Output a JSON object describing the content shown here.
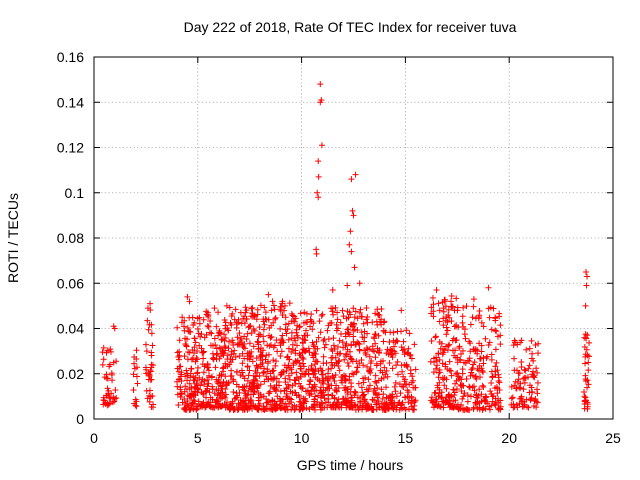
{
  "chart_data": {
    "type": "scatter",
    "title": "Day 222 of 2018, Rate Of TEC Index for receiver tuva",
    "xlabel": "GPS time / hours",
    "ylabel": "ROTI / TECUs",
    "xlim": [
      0,
      25
    ],
    "ylim": [
      0,
      0.16
    ],
    "x_ticks": [
      "0",
      "5",
      "10",
      "15",
      "20",
      "25"
    ],
    "y_ticks": [
      "0",
      "0.02",
      "0.04",
      "0.06",
      "0.08",
      "0.1",
      "0.12",
      "0.14",
      "0.16"
    ],
    "grid": true,
    "marker": "plus",
    "color": "#ff0000",
    "series": [
      {
        "x": [
          10.9,
          10.95,
          10.9,
          10.98,
          10.8,
          10.82,
          10.75,
          10.8,
          10.7,
          10.72,
          12.4,
          12.45,
          12.5,
          12.6,
          12.35,
          12.3,
          12.55,
          12.4,
          12.8,
          23.7,
          23.75,
          23.72,
          23.68,
          8.4,
          8.6,
          9.2,
          11.5,
          12.2,
          16.5,
          17.2,
          19.0,
          18.3,
          14.8,
          4.5,
          4.6,
          5.8,
          6.4,
          7.3,
          2.7,
          2.6,
          0.95,
          1.0
        ],
        "y": [
          0.148,
          0.141,
          0.14,
          0.121,
          0.114,
          0.107,
          0.1,
          0.098,
          0.075,
          0.073,
          0.106,
          0.092,
          0.09,
          0.108,
          0.083,
          0.077,
          0.067,
          0.074,
          0.06,
          0.065,
          0.063,
          0.059,
          0.05,
          0.055,
          0.052,
          0.05,
          0.057,
          0.059,
          0.057,
          0.052,
          0.058,
          0.053,
          0.048,
          0.054,
          0.052,
          0.049,
          0.05,
          0.047,
          0.051,
          0.049,
          0.041,
          0.04
        ]
      },
      {
        "clusters": [
          {
            "x_range": [
              0.4,
              1.1
            ],
            "y_range": [
              0.006,
              0.032
            ],
            "n": 45
          },
          {
            "x_range": [
              1.9,
              2.1
            ],
            "y_range": [
              0.005,
              0.036
            ],
            "n": 15
          },
          {
            "x_range": [
              2.5,
              2.85
            ],
            "y_range": [
              0.005,
              0.052
            ],
            "n": 35
          },
          {
            "x_range": [
              4.0,
              5.2
            ],
            "y_range": [
              0.004,
              0.045
            ],
            "n": 150
          },
          {
            "x_range": [
              5.2,
              6.5
            ],
            "y_range": [
              0.005,
              0.048
            ],
            "n": 180
          },
          {
            "x_range": [
              6.5,
              8.0
            ],
            "y_range": [
              0.004,
              0.05
            ],
            "n": 230
          },
          {
            "x_range": [
              8.0,
              9.5
            ],
            "y_range": [
              0.004,
              0.052
            ],
            "n": 200
          },
          {
            "x_range": [
              9.5,
              11.0
            ],
            "y_range": [
              0.004,
              0.048
            ],
            "n": 200
          },
          {
            "x_range": [
              11.0,
              12.5
            ],
            "y_range": [
              0.005,
              0.05
            ],
            "n": 200
          },
          {
            "x_range": [
              12.5,
              14.0
            ],
            "y_range": [
              0.004,
              0.05
            ],
            "n": 180
          },
          {
            "x_range": [
              14.0,
              15.5
            ],
            "y_range": [
              0.004,
              0.04
            ],
            "n": 140
          },
          {
            "x_range": [
              16.2,
              17.5
            ],
            "y_range": [
              0.005,
              0.055
            ],
            "n": 160
          },
          {
            "x_range": [
              17.5,
              19.6
            ],
            "y_range": [
              0.004,
              0.05
            ],
            "n": 200
          },
          {
            "x_range": [
              20.1,
              21.4
            ],
            "y_range": [
              0.005,
              0.035
            ],
            "n": 90
          },
          {
            "x_range": [
              23.6,
              23.85
            ],
            "y_range": [
              0.004,
              0.038
            ],
            "n": 35
          }
        ]
      }
    ]
  }
}
